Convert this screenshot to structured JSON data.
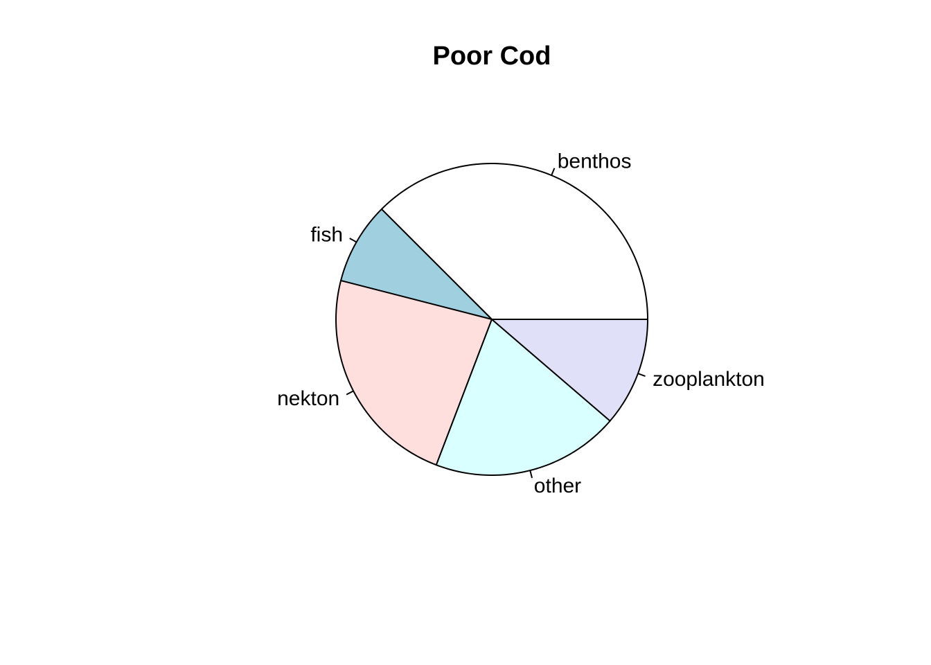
{
  "chart_data": {
    "type": "pie",
    "title": "Poor Cod",
    "start_angle_deg": 0,
    "direction": "counterclockwise",
    "slices": [
      {
        "label": "benthos",
        "value": 37.5,
        "color": "#FFFFFF"
      },
      {
        "label": "fish",
        "value": 8.5,
        "color": "#A0CFE0"
      },
      {
        "label": "nekton",
        "value": 23.2,
        "color": "#FFDEDE"
      },
      {
        "label": "other",
        "value": 19.5,
        "color": "#D9FFFF"
      },
      {
        "label": "zooplankton",
        "value": 11.3,
        "color": "#E0E0F8"
      }
    ]
  }
}
